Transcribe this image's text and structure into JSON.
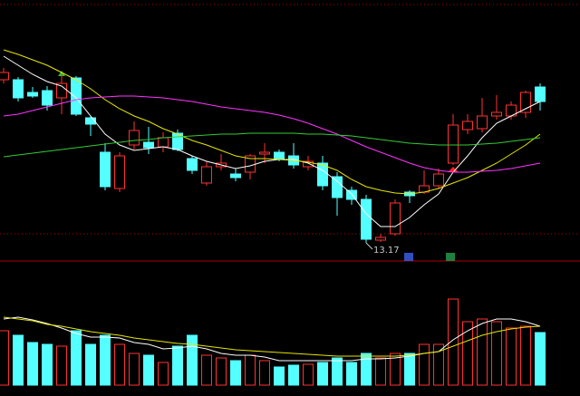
{
  "chart_data": {
    "type": "candlestick",
    "annotation": "13.17",
    "ylim": [
      12.83,
      18.53
    ],
    "up_color": "#ff3232",
    "down_color": "#54ffff",
    "open": [
      16.77,
      16.77,
      16.49,
      16.53,
      16.37,
      16.81,
      15.93,
      15.17,
      14.37,
      15.33,
      15.39,
      15.29,
      15.59,
      15.03,
      14.49,
      14.85,
      14.69,
      14.73,
      15.13,
      15.17,
      15.09,
      14.85,
      14.93,
      14.63,
      14.33,
      14.13,
      13.23,
      13.37,
      14.29,
      14.29,
      14.43,
      14.93,
      15.67,
      15.69,
      15.97,
      15.97,
      16.05,
      16.61
    ],
    "high": [
      17.03,
      16.83,
      16.61,
      16.63,
      16.89,
      16.85,
      15.97,
      15.37,
      15.17,
      15.85,
      15.73,
      15.61,
      15.67,
      15.09,
      14.97,
      15.13,
      14.81,
      15.13,
      15.37,
      15.23,
      15.37,
      15.09,
      15.09,
      14.73,
      14.41,
      14.23,
      13.37,
      14.13,
      14.33,
      14.77,
      14.81,
      16.01,
      16.01,
      16.37,
      16.43,
      16.29,
      16.53,
      16.69
    ],
    "low": [
      16.69,
      16.29,
      16.37,
      16.09,
      16.01,
      15.97,
      15.53,
      14.33,
      14.29,
      15.23,
      15.13,
      15.17,
      15.19,
      14.69,
      14.43,
      14.77,
      14.53,
      14.57,
      14.93,
      14.97,
      14.81,
      14.77,
      14.33,
      13.77,
      14.01,
      13.17,
      13.19,
      13.33,
      14.05,
      14.25,
      14.37,
      14.89,
      15.57,
      15.61,
      15.89,
      15.89,
      15.93,
      16.09
    ],
    "close": [
      16.93,
      16.37,
      16.41,
      16.21,
      16.69,
      16.01,
      15.79,
      14.41,
      15.09,
      15.65,
      15.27,
      15.49,
      15.23,
      14.77,
      14.85,
      14.93,
      14.61,
      15.09,
      15.17,
      15.03,
      14.89,
      14.97,
      14.43,
      14.17,
      14.13,
      13.25,
      13.29,
      14.05,
      14.21,
      14.43,
      14.69,
      15.77,
      15.85,
      15.97,
      16.05,
      16.21,
      16.49,
      16.29
    ],
    "series": [
      {
        "color": "#ffffff",
        "values": [
          17.29,
          17.09,
          16.89,
          16.73,
          16.63,
          16.37,
          15.97,
          15.57,
          15.33,
          15.21,
          15.25,
          15.29,
          15.23,
          15.09,
          14.97,
          14.89,
          14.81,
          14.87,
          14.97,
          15.01,
          15.01,
          14.93,
          14.77,
          14.53,
          14.25,
          13.81,
          13.53,
          13.53,
          13.73,
          14.01,
          14.25,
          14.73,
          15.09,
          15.49,
          15.81,
          15.97,
          16.13,
          16.29
        ]
      },
      {
        "color": "#e6e600",
        "values": [
          17.43,
          17.33,
          17.21,
          17.09,
          16.93,
          16.77,
          16.57,
          16.33,
          16.13,
          15.97,
          15.85,
          15.69,
          15.57,
          15.43,
          15.33,
          15.21,
          15.09,
          15.03,
          15.03,
          15.01,
          14.99,
          14.95,
          14.89,
          14.77,
          14.57,
          14.41,
          14.33,
          14.27,
          14.25,
          14.29,
          14.37,
          14.49,
          14.61,
          14.77,
          14.93,
          15.13,
          15.33,
          15.57
        ]
      },
      {
        "color": "#ff33ff",
        "values": [
          15.97,
          16.01,
          16.09,
          16.17,
          16.25,
          16.33,
          16.37,
          16.39,
          16.41,
          16.41,
          16.39,
          16.37,
          16.33,
          16.29,
          16.23,
          16.17,
          16.13,
          16.09,
          16.05,
          15.99,
          15.91,
          15.81,
          15.69,
          15.57,
          15.43,
          15.29,
          15.17,
          15.05,
          14.93,
          14.83,
          14.77,
          14.73,
          14.73,
          14.75,
          14.77,
          14.81,
          14.87,
          14.93
        ]
      },
      {
        "color": "#33cc33",
        "values": [
          15.07,
          15.11,
          15.15,
          15.19,
          15.23,
          15.27,
          15.31,
          15.35,
          15.39,
          15.43,
          15.45,
          15.49,
          15.51,
          15.53,
          15.55,
          15.57,
          15.57,
          15.59,
          15.59,
          15.59,
          15.59,
          15.57,
          15.57,
          15.55,
          15.53,
          15.49,
          15.45,
          15.41,
          15.37,
          15.35,
          15.33,
          15.33,
          15.33,
          15.35,
          15.37,
          15.41,
          15.45,
          15.49
        ]
      }
    ],
    "volume_ylim": [
      0,
      110
    ],
    "volume": [
      60,
      55,
      47,
      45,
      43,
      60,
      45,
      55,
      45,
      35,
      33,
      25,
      43,
      55,
      33,
      30,
      27,
      33,
      27,
      20,
      22,
      23,
      25,
      30,
      25,
      35,
      30,
      35,
      35,
      45,
      45,
      95,
      70,
      73,
      70,
      63,
      65,
      58
    ],
    "volume_lines": [
      {
        "color": "#ffffff",
        "values": [
          73,
          75,
          72,
          68,
          63,
          57,
          53,
          53,
          52,
          47,
          45,
          40,
          41,
          43,
          40,
          35,
          33,
          33,
          31,
          27,
          27,
          27,
          27,
          27,
          27,
          29,
          29,
          30,
          32,
          35,
          37,
          50,
          60,
          68,
          73,
          73,
          70,
          65
        ]
      },
      {
        "color": "#e6e600",
        "values": [
          75,
          73,
          71,
          67,
          65,
          62,
          59,
          57,
          55,
          52,
          50,
          48,
          46,
          45,
          43,
          41,
          39,
          38,
          37,
          36,
          35,
          34,
          33,
          32,
          32,
          32,
          32,
          32,
          33,
          35,
          37,
          43,
          49,
          55,
          59,
          62,
          64,
          65
        ]
      }
    ]
  }
}
